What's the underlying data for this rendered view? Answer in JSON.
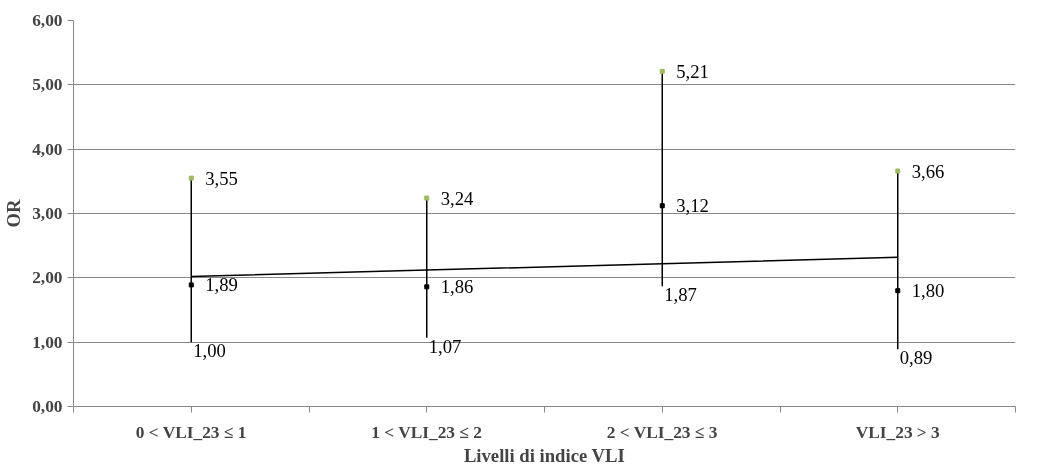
{
  "chart_data": {
    "type": "scatter",
    "xlabel": "Livelli di indice VLI",
    "ylabel": "OR",
    "categories": [
      "0 < VLI_23 ≤ 1",
      "1 < VLI_23 ≤ 2",
      "2 < VLI_23 ≤ 3",
      "VLI_23 > 3"
    ],
    "ylim": [
      0,
      6
    ],
    "yticks": [
      {
        "value": 0,
        "label": "0,00"
      },
      {
        "value": 1,
        "label": "1,00"
      },
      {
        "value": 2,
        "label": "2,00"
      },
      {
        "value": 3,
        "label": "3,00"
      },
      {
        "value": 4,
        "label": "4,00"
      },
      {
        "value": 5,
        "label": "5,00"
      },
      {
        "value": 6,
        "label": "6,00"
      }
    ],
    "grid": "y",
    "series": [
      {
        "type": "scatter",
        "color": "#000000",
        "marker": "square",
        "values": [
          1.89,
          1.86,
          3.12,
          1.8
        ],
        "errors": [
          [
            1.0,
            3.55
          ],
          [
            1.07,
            3.24
          ],
          [
            1.87,
            5.21
          ],
          [
            0.89,
            3.66
          ]
        ],
        "value_labels": [
          "1,89",
          "1,86",
          "3,12",
          "1,80"
        ]
      },
      {
        "type": "scatter",
        "color": "#9bbb59",
        "marker": "square",
        "values": [
          3.55,
          3.24,
          5.21,
          3.66
        ],
        "value_labels": [
          "3,55",
          "3,24",
          "5,21",
          "3,66"
        ]
      },
      {
        "type": "line",
        "color": "#000000",
        "marker": "none",
        "values": [
          2.02,
          2.12,
          2.22,
          2.32
        ]
      }
    ],
    "annotations": [
      {
        "text": "1,00",
        "x": "0 < VLI_23 ≤ 1",
        "y": 1.0
      },
      {
        "text": "1,07",
        "x": "1 < VLI_23 ≤ 2",
        "y": 1.07
      },
      {
        "text": "1,87",
        "x": "2 < VLI_23 ≤ 3",
        "y": 1.87
      },
      {
        "text": "0,89",
        "x": "VLI_23 > 3",
        "y": 0.89
      }
    ]
  }
}
